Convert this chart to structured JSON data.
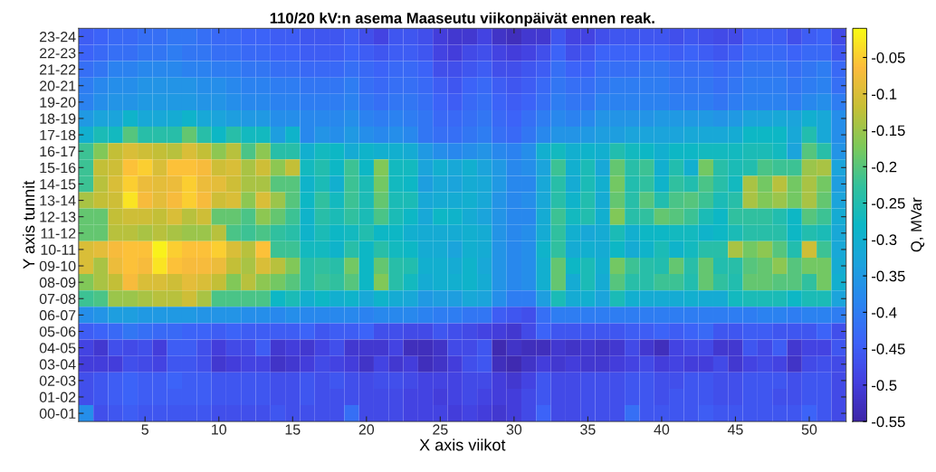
{
  "chart_data": {
    "type": "heatmap",
    "title": "110/20 kV:n asema Maaseutu viikonpäivät ennen reak.",
    "xlabel": "X axis viikot",
    "ylabel": "Y axis tunnit",
    "clabel": "Q, MVar",
    "categories": [
      null,
      null,
      null,
      null,
      "5",
      null,
      null,
      null,
      null,
      "10",
      null,
      null,
      null,
      null,
      "15",
      null,
      null,
      null,
      null,
      "20",
      null,
      null,
      null,
      null,
      "25",
      null,
      null,
      null,
      null,
      "30",
      null,
      null,
      null,
      null,
      "35",
      null,
      null,
      null,
      null,
      "40",
      null,
      null,
      null,
      null,
      "45",
      null,
      null,
      null,
      null,
      "50",
      null,
      null
    ],
    "y_categories": [
      "23-24",
      "22-23",
      "21-22",
      "20-21",
      "19-20",
      "18-19",
      "17-18",
      "16-17",
      "15-16",
      "14-15",
      "13-14",
      "12-13",
      "11-12",
      "10-11",
      "09-10",
      "08-09",
      "07-08",
      "06-07",
      "05-06",
      "04-05",
      "03-04",
      "02-03",
      "01-02",
      "00-01"
    ],
    "clim": [
      -0.55,
      -0.01
    ],
    "cticks": [
      -0.05,
      -0.1,
      -0.15,
      -0.2,
      -0.25,
      -0.3,
      -0.35,
      -0.4,
      -0.45,
      -0.5,
      -0.55
    ],
    "cells": [
      [
        -0.45,
        -0.44,
        -0.43,
        -0.43,
        -0.42,
        -0.42,
        -0.41,
        -0.41,
        -0.42,
        -0.43,
        -0.43,
        -0.44,
        -0.44,
        -0.45,
        -0.45,
        -0.46,
        -0.46,
        -0.46,
        -0.45,
        -0.47,
        -0.49,
        -0.46,
        -0.46,
        -0.47,
        -0.5,
        -0.51,
        -0.51,
        -0.49,
        -0.52,
        -0.53,
        -0.51,
        -0.51,
        -0.46,
        -0.49,
        -0.49,
        -0.47,
        -0.46,
        -0.46,
        -0.46,
        -0.46,
        -0.47,
        -0.46,
        -0.47,
        -0.48,
        -0.48,
        -0.45,
        -0.45,
        -0.45,
        -0.47,
        -0.45,
        -0.44,
        -0.48
      ],
      [
        -0.44,
        -0.43,
        -0.42,
        -0.42,
        -0.41,
        -0.41,
        -0.4,
        -0.41,
        -0.41,
        -0.42,
        -0.42,
        -0.43,
        -0.43,
        -0.44,
        -0.44,
        -0.45,
        -0.45,
        -0.45,
        -0.44,
        -0.45,
        -0.46,
        -0.45,
        -0.45,
        -0.46,
        -0.49,
        -0.5,
        -0.48,
        -0.47,
        -0.49,
        -0.5,
        -0.49,
        -0.47,
        -0.44,
        -0.47,
        -0.46,
        -0.44,
        -0.44,
        -0.44,
        -0.44,
        -0.44,
        -0.45,
        -0.44,
        -0.45,
        -0.46,
        -0.45,
        -0.43,
        -0.43,
        -0.43,
        -0.44,
        -0.43,
        -0.43,
        -0.46
      ],
      [
        -0.42,
        -0.41,
        -0.39,
        -0.39,
        -0.38,
        -0.38,
        -0.38,
        -0.39,
        -0.39,
        -0.4,
        -0.4,
        -0.41,
        -0.41,
        -0.42,
        -0.42,
        -0.43,
        -0.43,
        -0.43,
        -0.42,
        -0.43,
        -0.44,
        -0.43,
        -0.43,
        -0.44,
        -0.47,
        -0.47,
        -0.46,
        -0.45,
        -0.47,
        -0.47,
        -0.46,
        -0.45,
        -0.42,
        -0.44,
        -0.44,
        -0.42,
        -0.42,
        -0.42,
        -0.41,
        -0.41,
        -0.42,
        -0.42,
        -0.42,
        -0.43,
        -0.42,
        -0.41,
        -0.41,
        -0.41,
        -0.42,
        -0.41,
        -0.4,
        -0.43
      ],
      [
        -0.4,
        -0.38,
        -0.37,
        -0.37,
        -0.36,
        -0.36,
        -0.36,
        -0.36,
        -0.37,
        -0.37,
        -0.38,
        -0.39,
        -0.39,
        -0.4,
        -0.4,
        -0.41,
        -0.41,
        -0.41,
        -0.4,
        -0.42,
        -0.43,
        -0.42,
        -0.42,
        -0.43,
        -0.45,
        -0.46,
        -0.44,
        -0.43,
        -0.45,
        -0.46,
        -0.45,
        -0.43,
        -0.41,
        -0.42,
        -0.42,
        -0.41,
        -0.4,
        -0.4,
        -0.4,
        -0.4,
        -0.41,
        -0.41,
        -0.41,
        -0.42,
        -0.41,
        -0.4,
        -0.4,
        -0.4,
        -0.41,
        -0.4,
        -0.39,
        -0.42
      ],
      [
        -0.39,
        -0.37,
        -0.36,
        -0.36,
        -0.35,
        -0.35,
        -0.35,
        -0.35,
        -0.36,
        -0.36,
        -0.37,
        -0.38,
        -0.38,
        -0.39,
        -0.39,
        -0.4,
        -0.4,
        -0.4,
        -0.39,
        -0.41,
        -0.42,
        -0.41,
        -0.41,
        -0.42,
        -0.44,
        -0.45,
        -0.43,
        -0.42,
        -0.44,
        -0.45,
        -0.44,
        -0.42,
        -0.4,
        -0.41,
        -0.41,
        -0.39,
        -0.39,
        -0.39,
        -0.39,
        -0.39,
        -0.4,
        -0.4,
        -0.4,
        -0.41,
        -0.4,
        -0.39,
        -0.39,
        -0.39,
        -0.4,
        -0.38,
        -0.37,
        -0.4
      ],
      [
        -0.35,
        -0.33,
        -0.33,
        -0.29,
        -0.32,
        -0.32,
        -0.31,
        -0.29,
        -0.32,
        -0.33,
        -0.34,
        -0.35,
        -0.35,
        -0.37,
        -0.37,
        -0.38,
        -0.38,
        -0.38,
        -0.37,
        -0.39,
        -0.4,
        -0.39,
        -0.4,
        -0.41,
        -0.43,
        -0.43,
        -0.42,
        -0.41,
        -0.43,
        -0.44,
        -0.42,
        -0.4,
        -0.38,
        -0.39,
        -0.38,
        -0.36,
        -0.36,
        -0.36,
        -0.36,
        -0.35,
        -0.35,
        -0.35,
        -0.35,
        -0.36,
        -0.35,
        -0.33,
        -0.33,
        -0.32,
        -0.33,
        -0.3,
        -0.32,
        -0.37
      ],
      [
        -0.3,
        -0.26,
        -0.27,
        -0.2,
        -0.24,
        -0.24,
        -0.24,
        -0.19,
        -0.24,
        -0.28,
        -0.24,
        -0.27,
        -0.27,
        -0.34,
        -0.29,
        -0.38,
        -0.36,
        -0.37,
        -0.35,
        -0.37,
        -0.38,
        -0.37,
        -0.38,
        -0.41,
        -0.42,
        -0.42,
        -0.41,
        -0.4,
        -0.42,
        -0.43,
        -0.41,
        -0.38,
        -0.36,
        -0.36,
        -0.35,
        -0.34,
        -0.34,
        -0.33,
        -0.33,
        -0.33,
        -0.33,
        -0.32,
        -0.32,
        -0.32,
        -0.31,
        -0.28,
        -0.28,
        -0.28,
        -0.32,
        -0.25,
        -0.32,
        -0.37
      ],
      [
        -0.22,
        -0.17,
        -0.12,
        -0.1,
        -0.11,
        -0.12,
        -0.13,
        -0.1,
        -0.12,
        -0.16,
        -0.13,
        -0.21,
        -0.16,
        -0.24,
        -0.24,
        -0.3,
        -0.27,
        -0.28,
        -0.31,
        -0.29,
        -0.3,
        -0.3,
        -0.31,
        -0.35,
        -0.37,
        -0.38,
        -0.37,
        -0.36,
        -0.38,
        -0.39,
        -0.37,
        -0.3,
        -0.27,
        -0.3,
        -0.29,
        -0.3,
        -0.25,
        -0.27,
        -0.28,
        -0.3,
        -0.28,
        -0.28,
        -0.27,
        -0.27,
        -0.27,
        -0.26,
        -0.26,
        -0.27,
        -0.33,
        -0.2,
        -0.24,
        -0.36
      ],
      [
        -0.22,
        -0.12,
        -0.11,
        -0.06,
        -0.05,
        -0.1,
        -0.06,
        -0.06,
        -0.07,
        -0.11,
        -0.1,
        -0.14,
        -0.11,
        -0.16,
        -0.12,
        -0.27,
        -0.25,
        -0.28,
        -0.22,
        -0.28,
        -0.17,
        -0.27,
        -0.27,
        -0.33,
        -0.3,
        -0.32,
        -0.3,
        -0.33,
        -0.35,
        -0.38,
        -0.37,
        -0.33,
        -0.22,
        -0.3,
        -0.26,
        -0.32,
        -0.19,
        -0.24,
        -0.22,
        -0.3,
        -0.25,
        -0.3,
        -0.18,
        -0.24,
        -0.26,
        -0.25,
        -0.21,
        -0.22,
        -0.22,
        -0.15,
        -0.14,
        -0.33
      ],
      [
        -0.22,
        -0.13,
        -0.1,
        -0.05,
        -0.08,
        -0.09,
        -0.08,
        -0.05,
        -0.08,
        -0.09,
        -0.11,
        -0.14,
        -0.14,
        -0.2,
        -0.2,
        -0.29,
        -0.26,
        -0.3,
        -0.22,
        -0.26,
        -0.18,
        -0.27,
        -0.28,
        -0.34,
        -0.32,
        -0.33,
        -0.31,
        -0.32,
        -0.35,
        -0.38,
        -0.38,
        -0.32,
        -0.24,
        -0.31,
        -0.26,
        -0.3,
        -0.18,
        -0.25,
        -0.23,
        -0.29,
        -0.23,
        -0.25,
        -0.21,
        -0.24,
        -0.27,
        -0.14,
        -0.18,
        -0.13,
        -0.18,
        -0.14,
        -0.18,
        -0.34
      ],
      [
        -0.14,
        -0.12,
        -0.11,
        -0.03,
        -0.07,
        -0.09,
        -0.07,
        -0.05,
        -0.07,
        -0.11,
        -0.1,
        -0.16,
        -0.1,
        -0.15,
        -0.2,
        -0.28,
        -0.23,
        -0.27,
        -0.22,
        -0.26,
        -0.19,
        -0.26,
        -0.26,
        -0.32,
        -0.31,
        -0.31,
        -0.3,
        -0.32,
        -0.36,
        -0.38,
        -0.37,
        -0.32,
        -0.24,
        -0.29,
        -0.25,
        -0.31,
        -0.19,
        -0.24,
        -0.2,
        -0.25,
        -0.21,
        -0.2,
        -0.22,
        -0.26,
        -0.24,
        -0.14,
        -0.17,
        -0.15,
        -0.18,
        -0.14,
        -0.19,
        -0.33
      ],
      [
        -0.19,
        -0.19,
        -0.12,
        -0.11,
        -0.11,
        -0.12,
        -0.1,
        -0.13,
        -0.11,
        -0.19,
        -0.19,
        -0.21,
        -0.16,
        -0.19,
        -0.22,
        -0.29,
        -0.24,
        -0.26,
        -0.23,
        -0.26,
        -0.21,
        -0.26,
        -0.28,
        -0.32,
        -0.28,
        -0.29,
        -0.31,
        -0.33,
        -0.36,
        -0.38,
        -0.38,
        -0.31,
        -0.22,
        -0.27,
        -0.25,
        -0.3,
        -0.17,
        -0.24,
        -0.23,
        -0.19,
        -0.2,
        -0.22,
        -0.26,
        -0.28,
        -0.23,
        -0.23,
        -0.23,
        -0.25,
        -0.28,
        -0.2,
        -0.22,
        -0.31
      ],
      [
        -0.19,
        -0.19,
        -0.13,
        -0.13,
        -0.14,
        -0.13,
        -0.14,
        -0.15,
        -0.15,
        -0.13,
        -0.21,
        -0.22,
        -0.21,
        -0.23,
        -0.24,
        -0.29,
        -0.26,
        -0.28,
        -0.27,
        -0.25,
        -0.28,
        -0.28,
        -0.3,
        -0.31,
        -0.31,
        -0.31,
        -0.3,
        -0.31,
        -0.36,
        -0.38,
        -0.37,
        -0.31,
        -0.23,
        -0.3,
        -0.32,
        -0.31,
        -0.26,
        -0.3,
        -0.28,
        -0.28,
        -0.27,
        -0.27,
        -0.29,
        -0.28,
        -0.26,
        -0.24,
        -0.24,
        -0.24,
        -0.28,
        -0.25,
        -0.26,
        -0.32
      ],
      [
        -0.1,
        -0.09,
        -0.07,
        -0.06,
        -0.06,
        -0.02,
        -0.05,
        -0.06,
        -0.06,
        -0.05,
        -0.1,
        -0.13,
        -0.06,
        -0.22,
        -0.22,
        -0.27,
        -0.27,
        -0.29,
        -0.24,
        -0.28,
        -0.24,
        -0.27,
        -0.28,
        -0.31,
        -0.31,
        -0.33,
        -0.3,
        -0.31,
        -0.36,
        -0.38,
        -0.37,
        -0.29,
        -0.23,
        -0.31,
        -0.3,
        -0.31,
        -0.28,
        -0.31,
        -0.29,
        -0.26,
        -0.29,
        -0.27,
        -0.24,
        -0.24,
        -0.14,
        -0.18,
        -0.16,
        -0.2,
        -0.25,
        -0.11,
        -0.22,
        -0.32
      ],
      [
        -0.1,
        -0.14,
        -0.08,
        -0.06,
        -0.07,
        -0.03,
        -0.06,
        -0.07,
        -0.07,
        -0.08,
        -0.12,
        -0.14,
        -0.1,
        -0.13,
        -0.17,
        -0.24,
        -0.23,
        -0.24,
        -0.18,
        -0.28,
        -0.19,
        -0.24,
        -0.25,
        -0.3,
        -0.3,
        -0.31,
        -0.29,
        -0.32,
        -0.36,
        -0.38,
        -0.37,
        -0.3,
        -0.19,
        -0.28,
        -0.26,
        -0.3,
        -0.18,
        -0.22,
        -0.24,
        -0.25,
        -0.19,
        -0.24,
        -0.19,
        -0.25,
        -0.24,
        -0.2,
        -0.19,
        -0.16,
        -0.2,
        -0.18,
        -0.18,
        -0.31
      ],
      [
        -0.17,
        -0.14,
        -0.12,
        -0.07,
        -0.1,
        -0.1,
        -0.11,
        -0.09,
        -0.1,
        -0.12,
        -0.17,
        -0.13,
        -0.16,
        -0.18,
        -0.2,
        -0.24,
        -0.22,
        -0.23,
        -0.2,
        -0.28,
        -0.17,
        -0.24,
        -0.27,
        -0.31,
        -0.3,
        -0.3,
        -0.29,
        -0.31,
        -0.36,
        -0.38,
        -0.37,
        -0.3,
        -0.19,
        -0.31,
        -0.26,
        -0.31,
        -0.2,
        -0.24,
        -0.24,
        -0.22,
        -0.22,
        -0.25,
        -0.19,
        -0.23,
        -0.25,
        -0.19,
        -0.19,
        -0.2,
        -0.2,
        -0.23,
        -0.18,
        -0.3
      ],
      [
        -0.22,
        -0.21,
        -0.15,
        -0.15,
        -0.14,
        -0.13,
        -0.13,
        -0.11,
        -0.14,
        -0.21,
        -0.21,
        -0.21,
        -0.21,
        -0.28,
        -0.26,
        -0.3,
        -0.28,
        -0.3,
        -0.29,
        -0.32,
        -0.29,
        -0.31,
        -0.32,
        -0.35,
        -0.34,
        -0.34,
        -0.32,
        -0.33,
        -0.37,
        -0.4,
        -0.4,
        -0.34,
        -0.26,
        -0.31,
        -0.3,
        -0.33,
        -0.26,
        -0.3,
        -0.31,
        -0.31,
        -0.31,
        -0.3,
        -0.31,
        -0.31,
        -0.27,
        -0.26,
        -0.26,
        -0.26,
        -0.28,
        -0.26,
        -0.26,
        -0.33
      ],
      [
        -0.37,
        -0.36,
        -0.34,
        -0.34,
        -0.35,
        -0.35,
        -0.35,
        -0.35,
        -0.36,
        -0.36,
        -0.36,
        -0.37,
        -0.37,
        -0.38,
        -0.37,
        -0.38,
        -0.38,
        -0.38,
        -0.38,
        -0.39,
        -0.38,
        -0.38,
        -0.38,
        -0.39,
        -0.4,
        -0.4,
        -0.41,
        -0.41,
        -0.45,
        -0.46,
        -0.47,
        -0.42,
        -0.4,
        -0.4,
        -0.4,
        -0.4,
        -0.4,
        -0.4,
        -0.4,
        -0.4,
        -0.4,
        -0.4,
        -0.4,
        -0.4,
        -0.4,
        -0.4,
        -0.39,
        -0.39,
        -0.4,
        -0.39,
        -0.39,
        -0.4
      ],
      [
        -0.45,
        -0.44,
        -0.43,
        -0.41,
        -0.42,
        -0.43,
        -0.43,
        -0.44,
        -0.44,
        -0.45,
        -0.44,
        -0.45,
        -0.45,
        -0.45,
        -0.45,
        -0.44,
        -0.46,
        -0.45,
        -0.45,
        -0.44,
        -0.47,
        -0.47,
        -0.48,
        -0.48,
        -0.46,
        -0.47,
        -0.48,
        -0.49,
        -0.5,
        -0.51,
        -0.48,
        -0.44,
        -0.46,
        -0.46,
        -0.46,
        -0.46,
        -0.46,
        -0.45,
        -0.45,
        -0.44,
        -0.45,
        -0.44,
        -0.43,
        -0.46,
        -0.46,
        -0.45,
        -0.45,
        -0.46,
        -0.46,
        -0.46,
        -0.44,
        -0.47
      ],
      [
        -0.49,
        -0.51,
        -0.47,
        -0.48,
        -0.47,
        -0.5,
        -0.45,
        -0.45,
        -0.47,
        -0.5,
        -0.48,
        -0.48,
        -0.45,
        -0.51,
        -0.5,
        -0.51,
        -0.49,
        -0.47,
        -0.51,
        -0.51,
        -0.51,
        -0.49,
        -0.53,
        -0.53,
        -0.52,
        -0.48,
        -0.48,
        -0.46,
        -0.54,
        -0.52,
        -0.53,
        -0.53,
        -0.51,
        -0.52,
        -0.51,
        -0.52,
        -0.51,
        -0.48,
        -0.51,
        -0.53,
        -0.49,
        -0.48,
        -0.48,
        -0.51,
        -0.51,
        -0.46,
        -0.48,
        -0.45,
        -0.51,
        -0.49,
        -0.49,
        -0.46
      ],
      [
        -0.5,
        -0.5,
        -0.5,
        -0.47,
        -0.48,
        -0.49,
        -0.46,
        -0.46,
        -0.47,
        -0.51,
        -0.5,
        -0.49,
        -0.49,
        -0.52,
        -0.51,
        -0.5,
        -0.48,
        -0.49,
        -0.5,
        -0.52,
        -0.49,
        -0.51,
        -0.5,
        -0.53,
        -0.52,
        -0.5,
        -0.47,
        -0.46,
        -0.53,
        -0.54,
        -0.52,
        -0.5,
        -0.51,
        -0.5,
        -0.51,
        -0.51,
        -0.5,
        -0.49,
        -0.48,
        -0.5,
        -0.49,
        -0.5,
        -0.5,
        -0.48,
        -0.51,
        -0.49,
        -0.48,
        -0.49,
        -0.52,
        -0.48,
        -0.47,
        -0.48
      ],
      [
        -0.47,
        -0.46,
        -0.45,
        -0.44,
        -0.45,
        -0.45,
        -0.44,
        -0.45,
        -0.45,
        -0.46,
        -0.46,
        -0.46,
        -0.46,
        -0.47,
        -0.47,
        -0.46,
        -0.47,
        -0.46,
        -0.47,
        -0.48,
        -0.47,
        -0.47,
        -0.48,
        -0.49,
        -0.49,
        -0.49,
        -0.48,
        -0.48,
        -0.5,
        -0.51,
        -0.49,
        -0.46,
        -0.48,
        -0.48,
        -0.47,
        -0.47,
        -0.47,
        -0.46,
        -0.46,
        -0.47,
        -0.47,
        -0.46,
        -0.46,
        -0.47,
        -0.47,
        -0.46,
        -0.46,
        -0.46,
        -0.47,
        -0.46,
        -0.46,
        -0.48
      ],
      [
        -0.47,
        -0.46,
        -0.45,
        -0.44,
        -0.45,
        -0.45,
        -0.45,
        -0.45,
        -0.45,
        -0.46,
        -0.46,
        -0.46,
        -0.46,
        -0.47,
        -0.47,
        -0.46,
        -0.47,
        -0.47,
        -0.47,
        -0.48,
        -0.48,
        -0.48,
        -0.49,
        -0.49,
        -0.5,
        -0.49,
        -0.48,
        -0.49,
        -0.5,
        -0.5,
        -0.48,
        -0.46,
        -0.48,
        -0.48,
        -0.47,
        -0.47,
        -0.47,
        -0.46,
        -0.46,
        -0.47,
        -0.46,
        -0.46,
        -0.46,
        -0.47,
        -0.47,
        -0.46,
        -0.46,
        -0.47,
        -0.47,
        -0.46,
        -0.46,
        -0.48
      ],
      [
        -0.37,
        -0.47,
        -0.46,
        -0.45,
        -0.46,
        -0.46,
        -0.46,
        -0.46,
        -0.46,
        -0.47,
        -0.47,
        -0.47,
        -0.47,
        -0.46,
        -0.47,
        -0.47,
        -0.47,
        -0.47,
        -0.42,
        -0.48,
        -0.48,
        -0.48,
        -0.49,
        -0.49,
        -0.49,
        -0.5,
        -0.49,
        -0.5,
        -0.51,
        -0.5,
        -0.48,
        -0.44,
        -0.48,
        -0.48,
        -0.47,
        -0.47,
        -0.47,
        -0.42,
        -0.46,
        -0.46,
        -0.46,
        -0.46,
        -0.45,
        -0.46,
        -0.46,
        -0.46,
        -0.46,
        -0.46,
        -0.46,
        -0.44,
        -0.46,
        -0.48
      ]
    ]
  }
}
